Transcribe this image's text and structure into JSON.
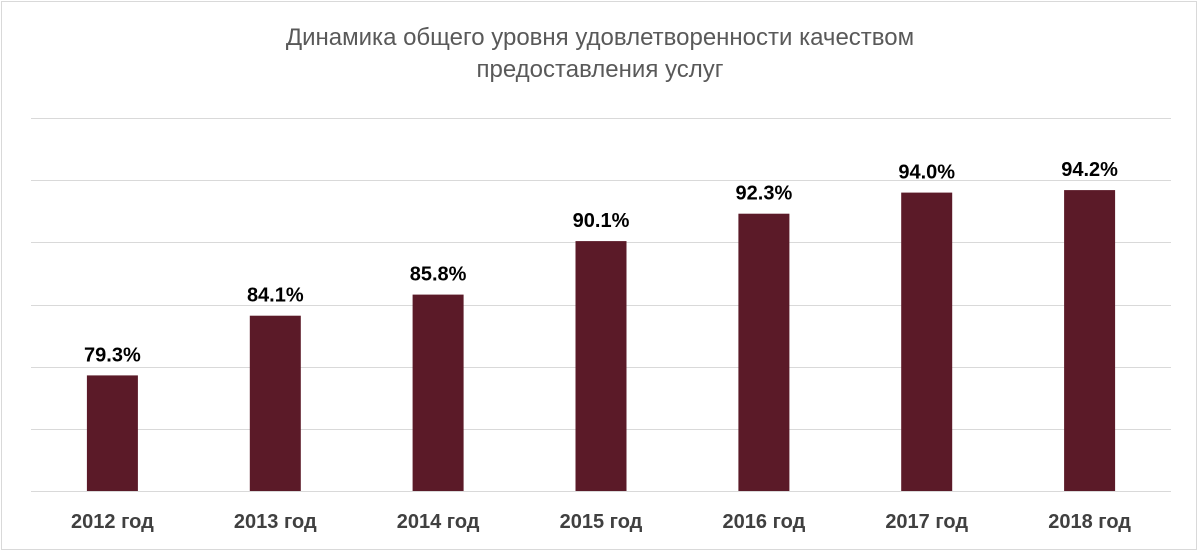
{
  "chart_data": {
    "type": "bar",
    "title": "Динамика общего уровня удовлетворенности качеством предоставления услуг",
    "title_lines": [
      "Динамика общего уровня удовлетворенности качеством",
      "предоставления услуг"
    ],
    "categories": [
      "2012 год",
      "2013 год",
      "2014 год",
      "2015 год",
      "2016 год",
      "2017 год",
      "2018 год"
    ],
    "values": [
      79.3,
      84.1,
      85.8,
      90.1,
      92.3,
      94.0,
      94.2
    ],
    "value_labels": [
      "79.3%",
      "84.1%",
      "85.8%",
      "90.1%",
      "92.3%",
      "94.0%",
      "94.2%"
    ],
    "xlabel": "",
    "ylabel": "",
    "ylim": [
      70,
      100
    ],
    "y_axis_visible": false,
    "grid": true,
    "legend": "none",
    "bar_color": "#5b1a28",
    "grid_color": "#d9d9d9"
  }
}
